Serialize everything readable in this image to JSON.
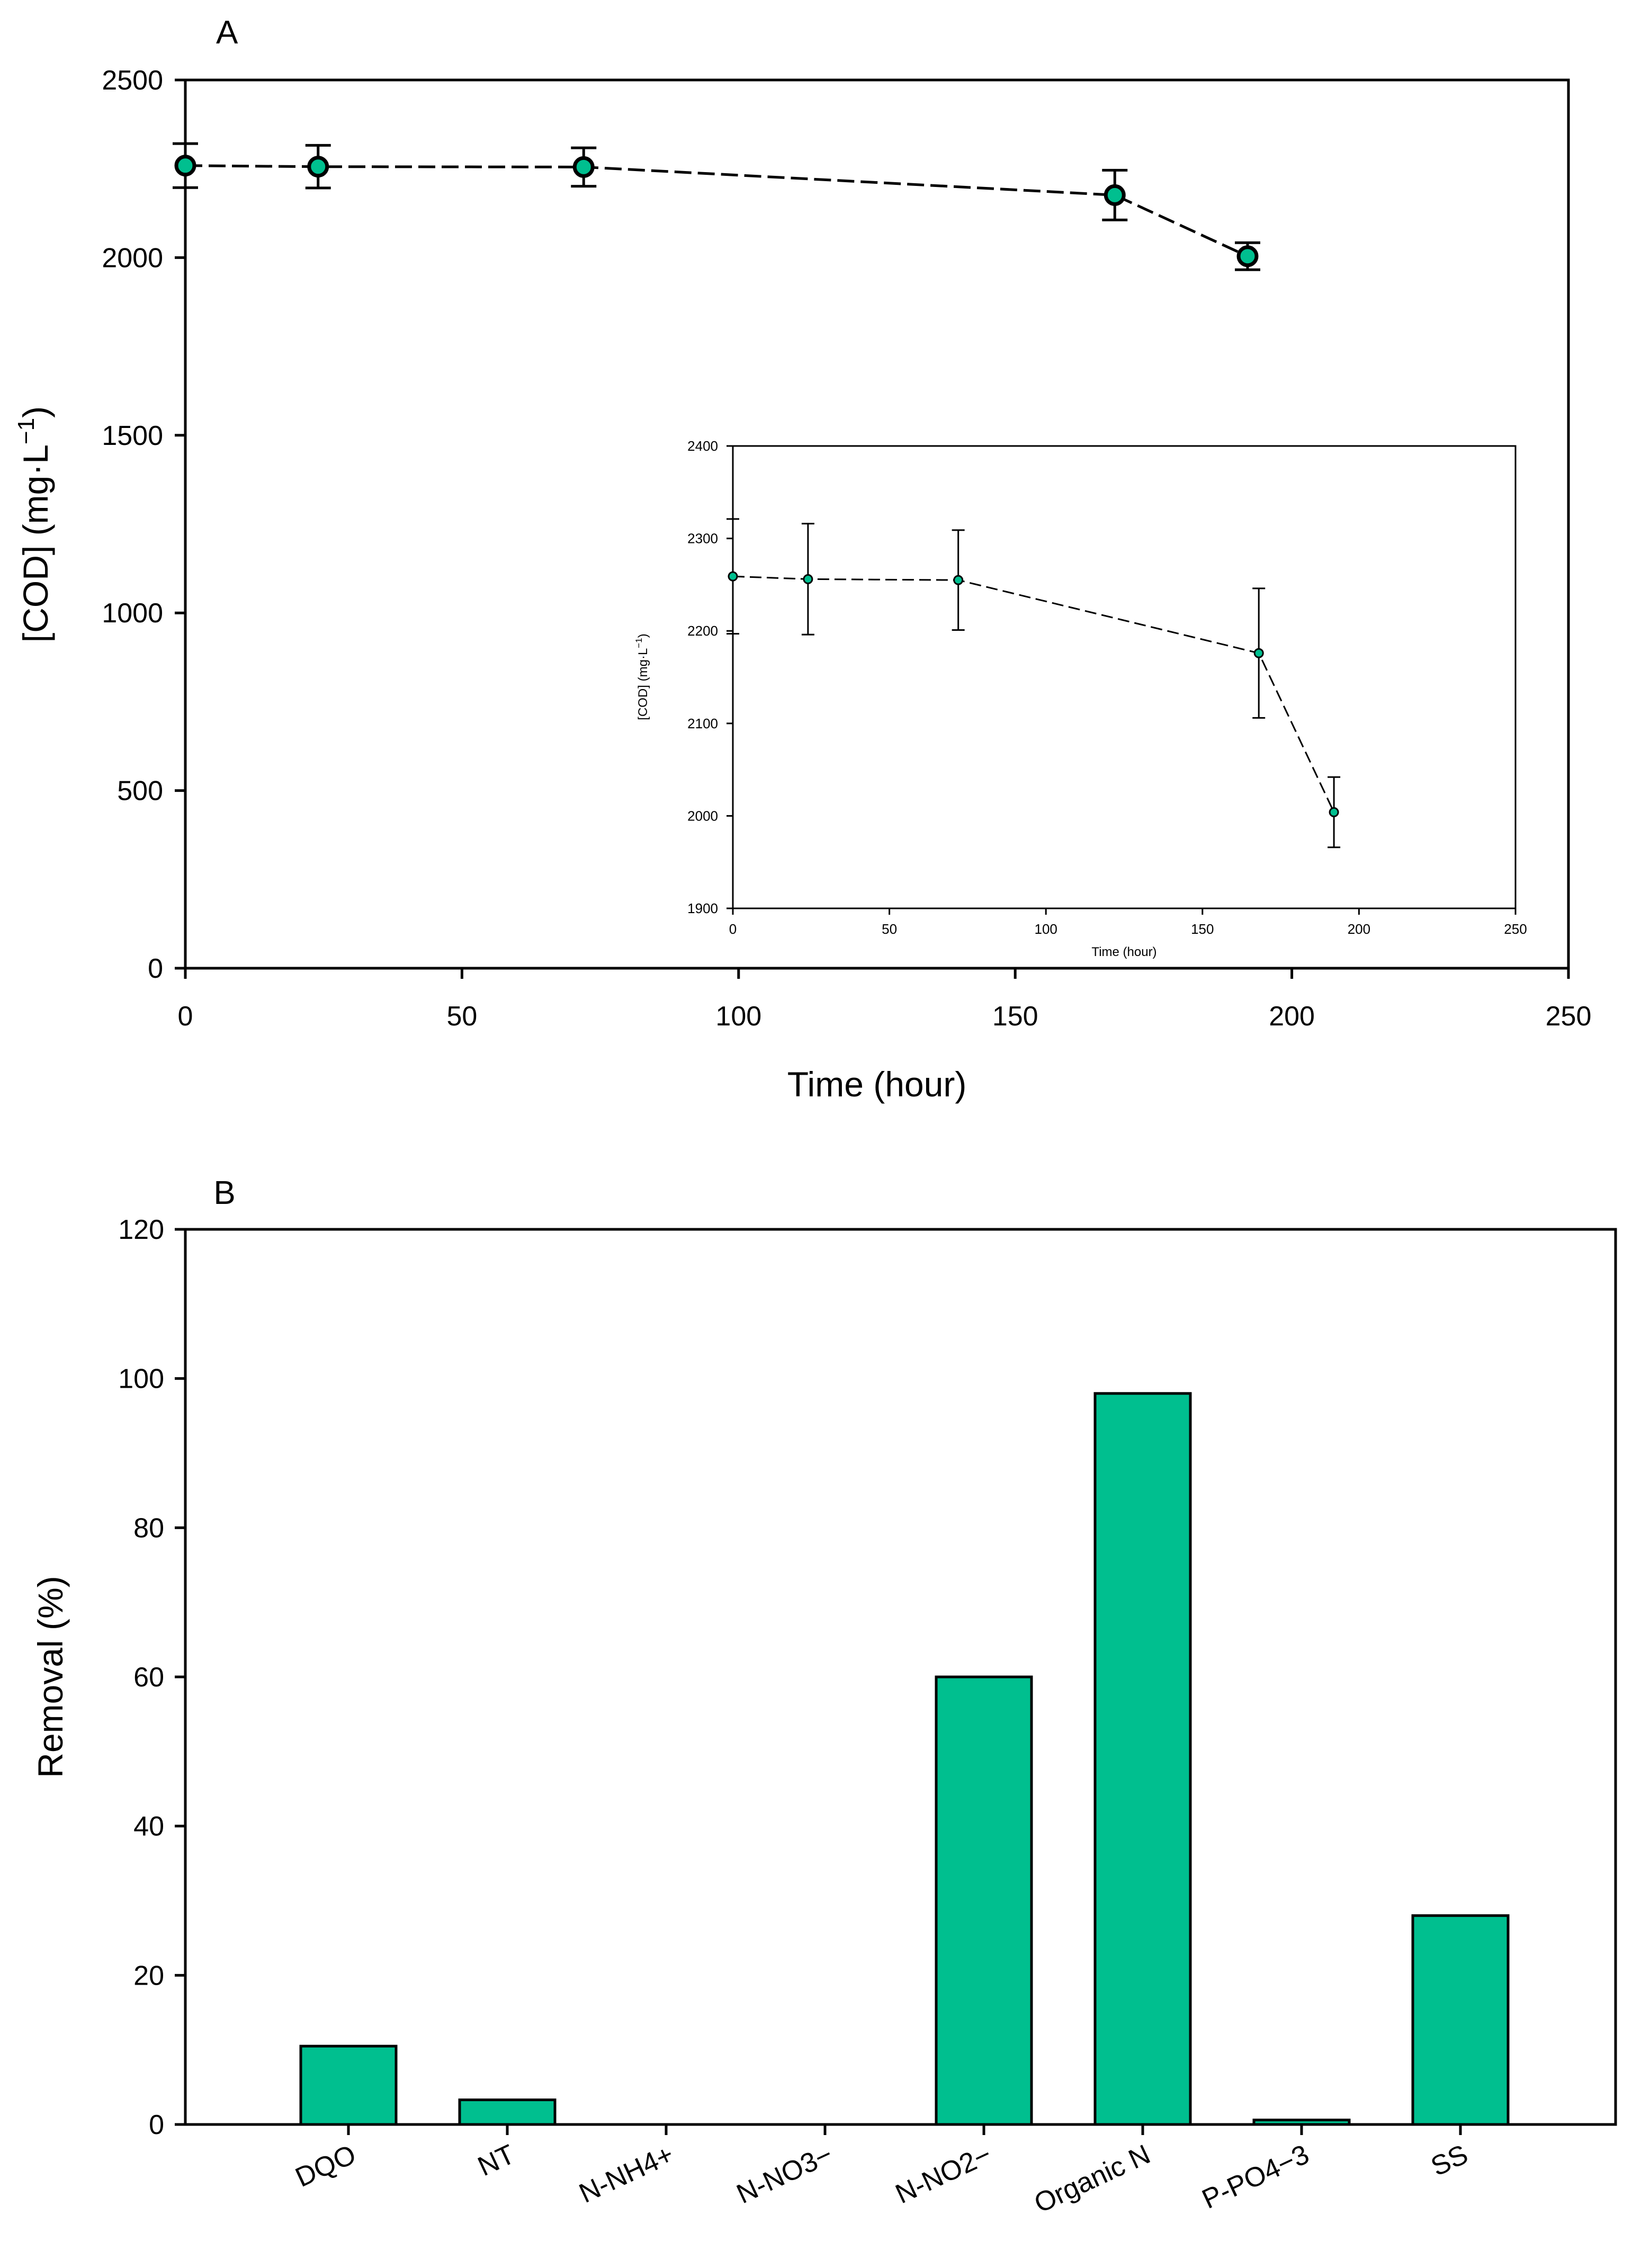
{
  "chart_data": [
    {
      "id": "A",
      "type": "scatter",
      "panel_label": "A",
      "title": "",
      "xlabel": "Time (hour)",
      "ylabel_main": "[COD] (mg·L",
      "ylabel_sup": "−1",
      "ylabel_close": ")",
      "xlim": [
        0,
        250
      ],
      "ylim": [
        0,
        2500
      ],
      "xticks": [
        0,
        50,
        100,
        150,
        200,
        250
      ],
      "yticks": [
        0,
        500,
        1000,
        1500,
        2000,
        2500
      ],
      "marker_color": "#00BF8F",
      "series": [
        {
          "name": "COD",
          "x": [
            0,
            24,
            72,
            168,
            192
          ],
          "y": [
            2259,
            2256,
            2255,
            2176,
            2004
          ],
          "err": [
            62,
            60,
            54,
            70,
            38
          ]
        }
      ]
    },
    {
      "id": "A-inset",
      "type": "scatter",
      "title": "",
      "xlabel": "Time (hour)",
      "ylabel_main": "[COD] (mg·L",
      "ylabel_sup": "−1",
      "ylabel_close": ")",
      "xlim": [
        0,
        250
      ],
      "ylim": [
        1900,
        2400
      ],
      "xticks": [
        0,
        50,
        100,
        150,
        200,
        250
      ],
      "yticks": [
        1900,
        2000,
        2100,
        2200,
        2300,
        2400
      ],
      "marker_color": "#00BF8F",
      "series": [
        {
          "name": "COD",
          "x": [
            0,
            24,
            72,
            168,
            192
          ],
          "y": [
            2259,
            2256,
            2255,
            2176,
            2004
          ],
          "err": [
            62,
            60,
            54,
            70,
            38
          ]
        }
      ]
    },
    {
      "id": "B",
      "type": "bar",
      "panel_label": "B",
      "title": "",
      "xlabel": "",
      "ylabel": "Removal (%)",
      "ylim": [
        0,
        120
      ],
      "yticks": [
        0,
        20,
        40,
        60,
        80,
        100,
        120
      ],
      "bar_color": "#00BF8F",
      "categories": [
        "DQO",
        "NT",
        "N-NH4+",
        "N-NO3−",
        "N-NO2−",
        "Organic N",
        "P-PO4−3",
        "SS"
      ],
      "values": [
        10.5,
        3.3,
        0,
        0,
        60,
        98,
        0.6,
        28
      ]
    }
  ]
}
